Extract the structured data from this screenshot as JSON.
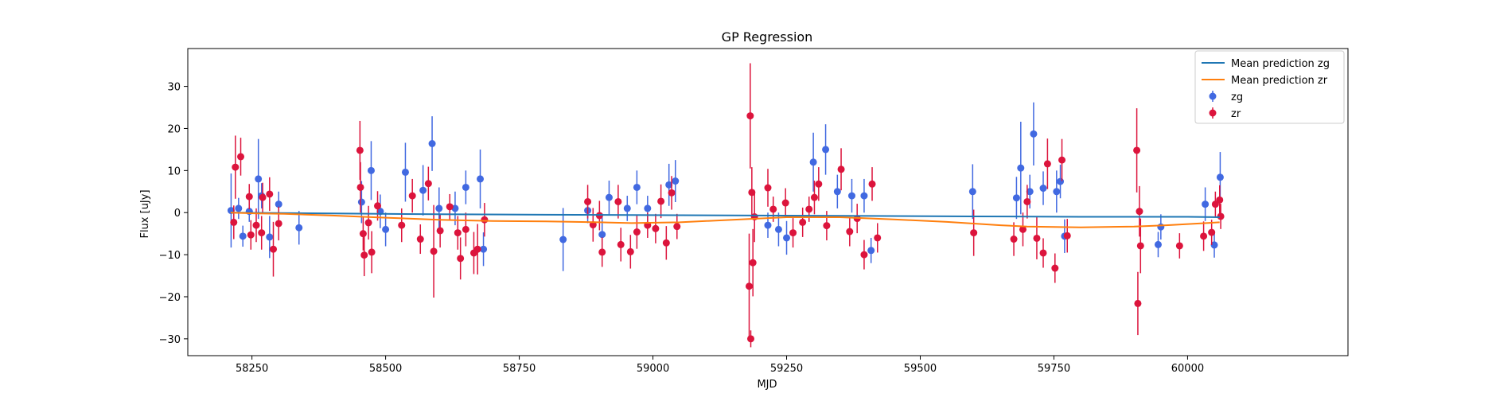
{
  "chart_data": {
    "type": "scatter",
    "title": "GP Regression",
    "xlabel": "MJD",
    "ylabel": "Flux [uJy]",
    "xlim": [
      58130,
      60300
    ],
    "ylim": [
      -34,
      39
    ],
    "xticks": [
      58250,
      58500,
      58750,
      59000,
      59250,
      59500,
      59750,
      60000
    ],
    "yticks": [
      -30,
      -20,
      -10,
      0,
      10,
      20,
      30
    ],
    "grid": false,
    "legend_position": "top-right",
    "series": [
      {
        "name": "Mean prediction zg",
        "kind": "line",
        "color": "#1f77b4",
        "x": [
          58210,
          58400,
          58600,
          58800,
          59000,
          59200,
          59400,
          59600,
          59800,
          60000,
          60060
        ],
        "y": [
          0.0,
          -0.2,
          -0.4,
          -0.5,
          -0.6,
          -0.7,
          -0.8,
          -0.9,
          -1.0,
          -1.0,
          -1.1
        ]
      },
      {
        "name": "Mean prediction zr",
        "kind": "line",
        "color": "#ff7f0e",
        "x": [
          58210,
          58260,
          58310,
          58400,
          58500,
          58600,
          58700,
          58800,
          58900,
          58960,
          59050,
          59180,
          59250,
          59350,
          59450,
          59550,
          59650,
          59700,
          59800,
          59900,
          59960,
          60060
        ],
        "y": [
          0.0,
          -0.2,
          -0.3,
          -0.7,
          -1.2,
          -1.7,
          -2.0,
          -2.1,
          -2.3,
          -2.5,
          -2.3,
          -1.5,
          -1.1,
          -1.1,
          -1.6,
          -2.2,
          -3.0,
          -3.3,
          -3.5,
          -3.3,
          -3.0,
          -2.3
        ]
      },
      {
        "name": "zg",
        "kind": "errorbar",
        "color": "#4169e1",
        "points": [
          [
            58211,
            0.5,
            8.8
          ],
          [
            58225,
            1.0,
            2.5
          ],
          [
            58233,
            -5.6,
            2.5
          ],
          [
            58245,
            0.3,
            2.5
          ],
          [
            58262,
            8.0,
            9.5
          ],
          [
            58268,
            4.0,
            3.0
          ],
          [
            58283,
            -5.8,
            5.0
          ],
          [
            58300,
            2.0,
            3.0
          ],
          [
            58338,
            -3.6,
            4.0
          ],
          [
            58455,
            2.5,
            5.0
          ],
          [
            58473,
            10.0,
            7.0
          ],
          [
            58490,
            0.3,
            4.0
          ],
          [
            58500,
            -4.0,
            4.0
          ],
          [
            58537,
            9.6,
            7.0
          ],
          [
            58570,
            5.3,
            6.0
          ],
          [
            58587,
            16.4,
            6.5
          ],
          [
            58600,
            1.0,
            5.0
          ],
          [
            58630,
            1.0,
            4.0
          ],
          [
            58650,
            6.0,
            4.0
          ],
          [
            58677,
            8.0,
            7.0
          ],
          [
            58683,
            -8.7,
            4.0
          ],
          [
            58832,
            -6.4,
            7.5
          ],
          [
            58878,
            0.5,
            3.0
          ],
          [
            58905,
            -5.2,
            5.0
          ],
          [
            58918,
            3.6,
            4.0
          ],
          [
            58952,
            1.0,
            3.0
          ],
          [
            58970,
            6.0,
            4.0
          ],
          [
            58990,
            1.0,
            3.0
          ],
          [
            59030,
            6.6,
            5.0
          ],
          [
            59042,
            7.5,
            5.0
          ],
          [
            59215,
            -3.0,
            3.0
          ],
          [
            59235,
            -4.0,
            4.0
          ],
          [
            59250,
            -6.0,
            4.0
          ],
          [
            59300,
            12.0,
            7.0
          ],
          [
            59323,
            15.0,
            6.0
          ],
          [
            59345,
            5.0,
            4.0
          ],
          [
            59372,
            4.0,
            4.0
          ],
          [
            59395,
            4.0,
            4.0
          ],
          [
            59408,
            -9.0,
            3.0
          ],
          [
            59598,
            5.0,
            6.5
          ],
          [
            59680,
            3.5,
            5.0
          ],
          [
            59688,
            10.6,
            11.0
          ],
          [
            59705,
            5.0,
            4.0
          ],
          [
            59712,
            18.7,
            7.5
          ],
          [
            59730,
            5.8,
            4.0
          ],
          [
            59755,
            5.0,
            5.0
          ],
          [
            59762,
            7.4,
            4.0
          ],
          [
            59770,
            -5.6,
            4.0
          ],
          [
            59945,
            -7.6,
            3.0
          ],
          [
            59950,
            -3.4,
            3.0
          ],
          [
            60033,
            2.0,
            4.0
          ],
          [
            60050,
            -7.7,
            3.0
          ],
          [
            60061,
            8.4,
            6.0
          ]
        ]
      },
      {
        "name": "zr",
        "kind": "errorbar",
        "color": "#dc143c",
        "points": [
          [
            58216,
            -2.3,
            4.0
          ],
          [
            58219,
            10.8,
            7.5
          ],
          [
            58229,
            13.3,
            4.5
          ],
          [
            58245,
            3.8,
            3.0
          ],
          [
            58248,
            -5.3,
            3.5
          ],
          [
            58258,
            -3.0,
            4.0
          ],
          [
            58268,
            -4.8,
            4.0
          ],
          [
            58270,
            3.6,
            3.5
          ],
          [
            58283,
            4.4,
            4.0
          ],
          [
            58290,
            -8.7,
            6.5
          ],
          [
            58300,
            -2.6,
            4.0
          ],
          [
            58452,
            14.8,
            7.0
          ],
          [
            58453,
            6.0,
            6.0
          ],
          [
            58458,
            -5.0,
            4.0
          ],
          [
            58460,
            -10.1,
            5.0
          ],
          [
            58468,
            -2.4,
            4.0
          ],
          [
            58474,
            -9.4,
            5.0
          ],
          [
            58485,
            1.6,
            3.5
          ],
          [
            58530,
            -3.0,
            4.0
          ],
          [
            58550,
            4.0,
            4.0
          ],
          [
            58565,
            -6.3,
            3.5
          ],
          [
            58580,
            6.9,
            4.0
          ],
          [
            58590,
            -9.2,
            11.0
          ],
          [
            58602,
            -4.3,
            4.0
          ],
          [
            58620,
            1.4,
            3.0
          ],
          [
            58635,
            -4.8,
            4.0
          ],
          [
            58640,
            -10.9,
            5.0
          ],
          [
            58650,
            -4.0,
            4.0
          ],
          [
            58665,
            -9.6,
            5.0
          ],
          [
            58672,
            -8.7,
            6.0
          ],
          [
            58685,
            -1.7,
            4.0
          ],
          [
            58878,
            2.6,
            4.0
          ],
          [
            58888,
            -2.9,
            4.0
          ],
          [
            58900,
            -0.7,
            3.5
          ],
          [
            58905,
            -9.4,
            3.5
          ],
          [
            58935,
            2.6,
            4.0
          ],
          [
            58940,
            -7.6,
            4.0
          ],
          [
            58958,
            -9.3,
            4.0
          ],
          [
            58970,
            -4.6,
            4.0
          ],
          [
            58990,
            -3.0,
            3.0
          ],
          [
            59005,
            -3.8,
            3.5
          ],
          [
            59015,
            2.7,
            4.0
          ],
          [
            59025,
            -7.2,
            4.0
          ],
          [
            59035,
            4.7,
            4.0
          ],
          [
            59045,
            -3.3,
            3.0
          ],
          [
            59180,
            -17.5,
            12.5
          ],
          [
            59182,
            23.0,
            12.5
          ],
          [
            59183,
            -30.0,
            2.0
          ],
          [
            59185,
            4.8,
            6.0
          ],
          [
            59187,
            -11.9,
            8.0
          ],
          [
            59190,
            -1.0,
            6.0
          ],
          [
            59215,
            5.9,
            4.5
          ],
          [
            59225,
            0.8,
            3.0
          ],
          [
            59248,
            2.3,
            3.5
          ],
          [
            59262,
            -4.8,
            3.5
          ],
          [
            59280,
            -2.3,
            3.5
          ],
          [
            59292,
            0.8,
            3.0
          ],
          [
            59302,
            3.6,
            4.0
          ],
          [
            59310,
            6.8,
            4.0
          ],
          [
            59325,
            -3.1,
            3.5
          ],
          [
            59352,
            10.3,
            5.0
          ],
          [
            59368,
            -4.5,
            3.5
          ],
          [
            59382,
            -1.4,
            3.5
          ],
          [
            59395,
            -10.0,
            3.5
          ],
          [
            59410,
            6.8,
            4.0
          ],
          [
            59420,
            -6.0,
            3.5
          ],
          [
            59600,
            -4.8,
            5.5
          ],
          [
            59675,
            -6.3,
            4.0
          ],
          [
            59692,
            -4.0,
            4.0
          ],
          [
            59700,
            2.6,
            4.0
          ],
          [
            59718,
            -6.1,
            5.0
          ],
          [
            59730,
            -9.6,
            3.5
          ],
          [
            59738,
            11.6,
            6.0
          ],
          [
            59752,
            -13.2,
            3.5
          ],
          [
            59765,
            12.5,
            5.0
          ],
          [
            59775,
            -5.5,
            4.0
          ],
          [
            59905,
            14.8,
            10.0
          ],
          [
            59907,
            -21.6,
            7.5
          ],
          [
            59910,
            0.3,
            6.0
          ],
          [
            59912,
            -7.9,
            6.5
          ],
          [
            59985,
            -7.9,
            3.0
          ],
          [
            60030,
            -5.6,
            3.5
          ],
          [
            60045,
            -4.7,
            3.0
          ],
          [
            60052,
            2.0,
            3.0
          ],
          [
            60060,
            3.0,
            3.5
          ],
          [
            60062,
            -0.9,
            3.0
          ]
        ]
      }
    ]
  }
}
